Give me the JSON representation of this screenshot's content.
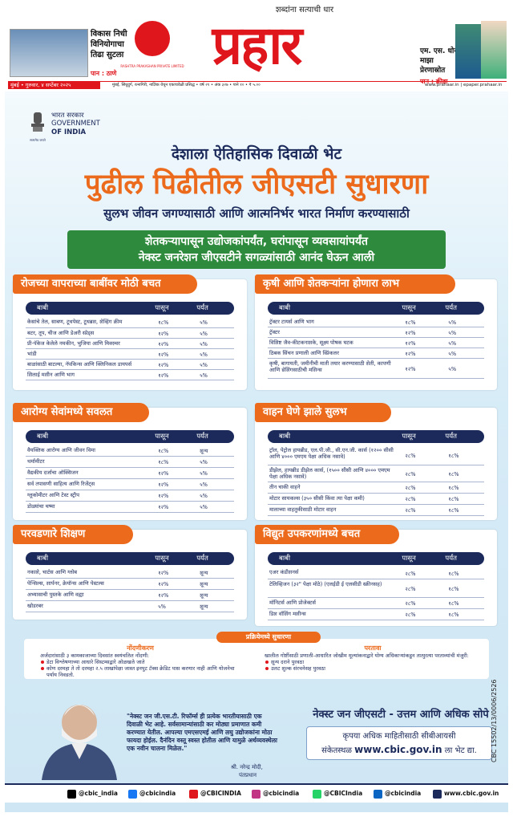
{
  "masthead": {
    "tagline": "शब्दांना सत्याची धार",
    "logo": "प्रहार",
    "publisher": "RASHTRA PRAKASHAN PRIVATE LIMITED",
    "left_teaser": {
      "headline": "विकास निधी विनियोगाचा तिढा सुटला",
      "page": "पान : ठाणे"
    },
    "right_teaser": {
      "headline": "एम. एस. धोनी माझा प्रेरणास्रोत",
      "page": "पान : क्रीडा"
    },
    "dateline": "मुंबई • गुरुवार, ४ सप्टेंबर २०२५",
    "edition_info": "मुंबई, सिंधुदुर्ग, रत्नागिरी, नाशिक येथून एकाचवेळी प्रसिद्ध • वर्ष २१ • अंक ३२७ • पाने १० • ₹ ५.००",
    "website": "www.prahaar.in | epaper.prahaar.in"
  },
  "ad": {
    "govt": {
      "line1": "भारत सरकार",
      "line2": "GOVERNMENT",
      "line3": "OF INDIA",
      "motto": "सत्यमेव जयते"
    },
    "kicker": "देशाला ऐतिहासिक दिवाळी भेट",
    "headline": "पुढील पिढीतील जीएसटी सुधारणा",
    "subhead": "सुलभ जीवन जगण्यासाठी आणि आत्मनिर्भर भारत निर्माण करण्यासाठी",
    "banner": [
      "शेतकऱ्यापासून उद्योजकांपर्यंत, घरांपासून व्यवसायांपर्यंत",
      "नेक्स्ट जनरेशन जीएसटीने सगळ्यांसाठी आनंद घेऊन आली"
    ],
    "tables": [
      {
        "title": "रोजच्या वापराच्या बाबींवर मोठी बचत",
        "columns": [
          "बाबी",
          "पासून",
          "पर्यंत"
        ],
        "rows": [
          [
            "केसांचे तेल, साबण, टूथपेस्ट, टूथब्रश, शेव्हिंग क्रीम",
            "१८%",
            "५%"
          ],
          [
            "बटर, तूप, चीज आणि डेअरी स्प्रेड्स",
            "१२%",
            "५%"
          ],
          [
            "प्री-पॅकेज केलेले नमकीन, भुजिया आणि मिक्श्चर",
            "१२%",
            "५%"
          ],
          [
            "भांडी",
            "१२%",
            "५%"
          ],
          [
            "बाळांसाठी बाटल्या, नॅपकिन्स आणि क्लिनिकल डायपर्स",
            "१२%",
            "५%"
          ],
          [
            "शिलाई मशीन आणि भाग",
            "१२%",
            "५%"
          ]
        ]
      },
      {
        "title": "कृषी आणि शेतकऱ्यांना होणारा लाभ",
        "columns": [
          "बाबी",
          "पासून",
          "पर्यंत"
        ],
        "rows": [
          [
            "ट्रॅक्टर टायर्स आणि भाग",
            "१८%",
            "५%"
          ],
          [
            "ट्रॅक्टर",
            "१२%",
            "५%"
          ],
          [
            "विशिष्ट जैव-कीटकनाशके, सूक्ष्म पोषक घटक",
            "१२%",
            "५%"
          ],
          [
            "ठिबक सिंचन प्रणाली आणि स्प्रिंकलर",
            "१२%",
            "५%"
          ],
          [
            "कृषी, बागायती, जमीनीची माती तयार करण्यासाठी शेती, कापणी आणि थ्रेशिंगसाठीची मशिन्स",
            "१२%",
            "५%"
          ]
        ]
      },
      {
        "title": "आरोग्य सेवांमध्ये सवलत",
        "columns": [
          "बाबी",
          "पासून",
          "पर्यंत"
        ],
        "rows": [
          [
            "वैयक्तिक आरोग्य आणि जीवन विमा",
            "१८%",
            "शून्य"
          ],
          [
            "थर्मामीटर",
            "१८%",
            "५%"
          ],
          [
            "वैद्यकीय दर्जाचा ऑक्सिजन",
            "१२%",
            "५%"
          ],
          [
            "सर्व तपासणी साहित्य आणि रिजेंट्स",
            "१२%",
            "५%"
          ],
          [
            "ग्लूकोमीटर आणि टेस्ट स्ट्रीप",
            "१२%",
            "५%"
          ],
          [
            "डोळ्यांचा चष्मा",
            "१२%",
            "५%"
          ]
        ]
      },
      {
        "title": "वाहन घेणे झाले सुलभ",
        "columns": [
          "बाबी",
          "पासून",
          "पर्यंत"
        ],
        "rows": [
          [
            "ट्रॉल, पेट्रोल हायब्रीड, एल.पी.जी., सी.एन.जी. कार्स (१२०० सीसी आणि ४००० एमएम पेक्षा अधिक नसावे)",
            "२८%",
            "१८%"
          ],
          [
            "डीझेल, हायब्रीड डीझेल कार्स, (१५०० सीसी आणि ४००० एमएम पेक्षा अधिक नसावे)",
            "२८%",
            "१८%"
          ],
          [
            "तीन चाकी वाहने",
            "२८%",
            "१८%"
          ],
          [
            "मोटार सायकल्स (३५० सीसी किंवा त्या पेक्षा कमी)",
            "२८%",
            "१८%"
          ],
          [
            "मालाच्या वाहतुकीसाठी मोटार वाहन",
            "२८%",
            "१८%"
          ]
        ]
      },
      {
        "title": "परवडणारे शिक्षण",
        "columns": [
          "बाबी",
          "पासून",
          "पर्यंत"
        ],
        "rows": [
          [
            "नकाशे, चार्टस आणि ग्लोब",
            "१२%",
            "शून्य"
          ],
          [
            "पेन्सिल्स, शार्पनर, क्रेयॉन्स आणि पेस्टल्स",
            "१२%",
            "शून्य"
          ],
          [
            "अभ्यासाची पुस्तके आणि वह्या",
            "१२%",
            "शून्य"
          ],
          [
            "खोडरबर",
            "५%",
            "शून्य"
          ]
        ]
      },
      {
        "title": "विद्युत उपकरणांमध्ये बचत",
        "columns": [
          "बाबी",
          "पासून",
          "पर्यंत"
        ],
        "rows": [
          [
            "एअर कंडीशनर्स",
            "२८%",
            "१८%"
          ],
          [
            "टेलिव्हिजन (३२\" पेक्षा मोठे) (एलईडी ई एलसीडी स्क्रीनसह)",
            "२८%",
            "१८%"
          ],
          [
            "मॉनिटर्स आणि प्रोजेक्टर्स",
            "२८%",
            "१८%"
          ],
          [
            "डिश वॉशिंग मशीन्स",
            "२८%",
            "१८%"
          ]
        ]
      }
    ],
    "reforms": {
      "title": "प्रक्रियेमध्ये सुधारणा",
      "registration": {
        "heading": "नोंदणीकरण",
        "intro": "अर्जदारांसाठी ३ कामकाजाच्या दिवसांत स्वयंचलित नोंदणी:",
        "bullets": [
          "डेटा विश्लेषणाच्या आधारे सिस्टम्सद्वारे ओळखले जाते",
          "कोण दरमहा ते तो दरमहा २.५ लाखांपेक्षा जास्त इनपुट टॅक्स क्रेडिट पास करणार नाही आणि योजनेचा पर्याय निवडतो."
        ]
      },
      "refund": {
        "heading": "परतावा",
        "intro": "खालील गोष्टींसाठी प्रणाली-आधारित जोखीम मूल्यांकनाद्वारे योग्य अधिकाऱ्यांकडून तात्पुरत्या परताव्यांची मंजुरी:",
        "bullets": [
          "शून्य दराने पुरवठा",
          "उलट शुल्क संरचनेसह पुरवठा"
        ]
      }
    },
    "quote": {
      "text": "\"नेक्स्ट जन जी.एस.टी. रिफॉर्म्स ही प्रत्येक भारतीयासाठी एक दिवाळी भेट आहे. सर्वसामान्यांसाठी कर मोठ्या प्रमाणात कमी करण्यात येतील. आपल्या एमएसएमई आणि लघु उद्योजकांना मोठा फायदा होईल. दैनंदिन वस्तू स्वस्त होतील आणि यामुळे अर्थव्यवस्थेला एक नवीन चालना मिळेल.\"",
      "author": "श्री. नरेन्द्र मोदी,",
      "designation": "पंतप्रधान"
    },
    "tagline": "नेक्स्ट जन जीएसटी - उत्तम आणि अधिक सोपे",
    "info": {
      "line1": "कृपया अधिक माहितीसाठी सीबीआयसी",
      "prefix": "संकेतस्थळ",
      "url": "www.cbic.gov.in",
      "suffix": "ला भेट द्या."
    },
    "cbc_code": "CBC 15502/13/0006/2526",
    "social": [
      "@cbic_india",
      "@cbicindia",
      "@CBICINDIA",
      "@cbicindia",
      "@CBICIndia",
      "@cbicindia",
      "www.cbic.gov.in"
    ]
  }
}
